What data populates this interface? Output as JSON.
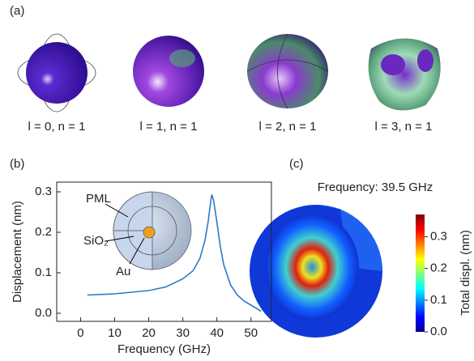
{
  "panel_labels": [
    "(a)",
    "(b)",
    "(c)"
  ],
  "modes": [
    "l = 0, n = 1",
    "l = 1, n = 1",
    "l = 2, n = 1",
    "l = 3, n = 1"
  ],
  "chart_data": {
    "type": "line",
    "x_label": "Frequency (GHz)",
    "y_label": "Displacement (nm)",
    "inset_labels": [
      "PML",
      "SiO₂",
      "Au"
    ],
    "x": [
      2,
      10,
      20,
      25,
      30,
      33,
      35,
      36.5,
      37.5,
      38,
      38.5,
      39,
      40,
      41,
      42,
      44,
      46,
      48,
      50,
      53
    ],
    "series": [
      {
        "color": "#2f78c8",
        "values": [
          0.045,
          0.048,
          0.056,
          0.065,
          0.085,
          0.105,
          0.135,
          0.18,
          0.23,
          0.265,
          0.293,
          0.28,
          0.225,
          0.165,
          0.12,
          0.07,
          0.045,
          0.03,
          0.02,
          0.005
        ]
      }
    ],
    "xlim": [
      -7,
      56
    ],
    "ylim": [
      -0.02,
      0.324
    ],
    "xticks": [
      0,
      10,
      20,
      30,
      40,
      50
    ],
    "yticks": [
      {
        "value": 0,
        "label": "0.0"
      },
      0.1,
      0.2,
      0.3
    ]
  },
  "panel_c": {
    "title": "Frequency: 39.5 GHz",
    "colorbar": {
      "label": "Total displ. (nm)",
      "lim": [
        0,
        0.37
      ],
      "ticks": [
        {
          "value": 0,
          "label": "0.0"
        },
        0.1,
        0.2,
        0.3
      ]
    }
  }
}
